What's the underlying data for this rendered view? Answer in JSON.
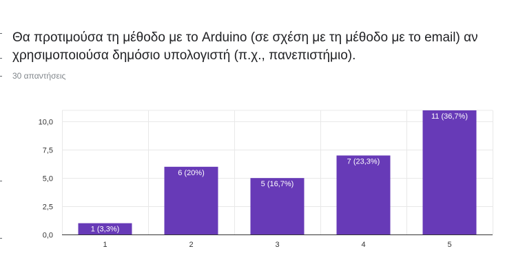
{
  "question": {
    "title": "Θα προτιμούσα τη μέθοδο με το Arduino (σε σχέση με τη μέθοδο με το email) αν χρησιμοποιούσα δημόσιο υπολογιστή (π.χ., πανεπιστήμιο).",
    "responses": "30 απαντήσεις"
  },
  "colors": {
    "bar": "#673ab7",
    "axis": "#333333",
    "grid": "#e8e8e8"
  },
  "chart_data": {
    "type": "bar",
    "categories": [
      "1",
      "2",
      "3",
      "4",
      "5"
    ],
    "values": [
      1,
      6,
      5,
      7,
      11
    ],
    "data_labels": [
      "1 (3,3%)",
      "6 (20%)",
      "5 (16,7%)",
      "7 (23,3%)",
      "11 (36,7%)"
    ],
    "ylim": [
      0,
      11
    ],
    "yticks": [
      0,
      2.5,
      5,
      7.5,
      10
    ],
    "ytick_labels": [
      "0,0",
      "2,5",
      "5,0",
      "7,5",
      "10,0"
    ],
    "xlabel": "",
    "ylabel": "",
    "grid": true
  }
}
